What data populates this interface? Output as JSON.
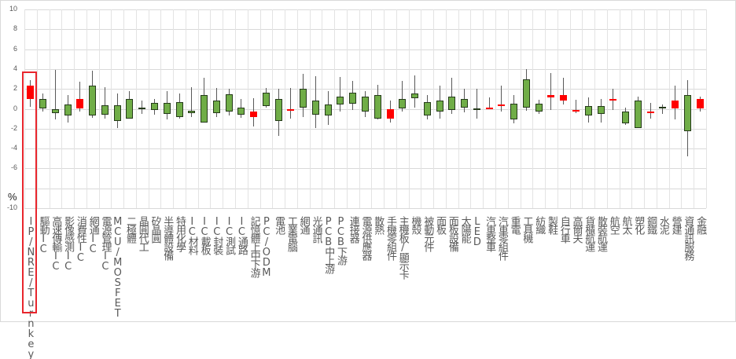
{
  "chart_data": {
    "type": "candlestick",
    "title": "",
    "xlabel": "",
    "ylabel": "%",
    "ylim": [
      -10,
      10
    ],
    "yticks": [
      10,
      8,
      6,
      4,
      2,
      0,
      -2,
      -4,
      -6,
      -8,
      -10
    ],
    "grid": true,
    "legend": null,
    "highlighted_category": "IP/NRE/Turnkey",
    "colors": {
      "up": "#ff0000",
      "down": "#70ad47",
      "highlight_box": "#e8262d"
    },
    "categories": [
      "IP/NRE/Turnkey",
      "驅動IC",
      "高速傳輸IC",
      "影像感測IC",
      "消費性IC",
      "網通IC",
      "電源管理IC",
      "MCU/MOSFET",
      "二極體",
      "晶圓代工",
      "矽晶圓",
      "半導體設備",
      "特用化學",
      "IC材料",
      "IC載板",
      "IC封裝",
      "IC測試",
      "IC通路",
      "記憶體上中下游",
      "PC/ODM",
      "電池",
      "工業電腦",
      "網通",
      "光通訊",
      "PCB中上游",
      "PCB下游",
      "連接器",
      "電源供應器",
      "散熱",
      "手機零組件",
      "主機板/顯示卡",
      "機殼",
      "被動元件",
      "面板",
      "面板設備",
      "太陽能",
      "LED",
      "汽車整車",
      "汽車零組件",
      "重電",
      "工具機",
      "紡織",
      "製鞋",
      "自行車",
      "高爾夫",
      "貨櫃航運",
      "散裝航運",
      "航空",
      "航太",
      "塑化",
      "鋼鐵",
      "水泥",
      "營建",
      "資通訊服務",
      "金融"
    ],
    "series": [
      {
        "name": "open",
        "values": [
          0.95,
          0.95,
          0,
          0.45,
          0,
          2.3,
          0.35,
          0.35,
          1.0,
          0.15,
          0.6,
          0.6,
          0.7,
          -0.2,
          1.4,
          0.85,
          1.5,
          0.1,
          -0.8,
          1.6,
          1.0,
          -0.05,
          2.0,
          0.8,
          0.4,
          1.2,
          1.65,
          1.2,
          1.4,
          -0.95,
          0.95,
          1.55,
          0.7,
          0.8,
          1.2,
          0.95,
          0.05,
          0.1,
          0.45,
          0.55,
          3.0,
          0.5,
          1.15,
          0.85,
          -0.2,
          0.25,
          0.3,
          0.95,
          -0.25,
          0.8,
          -0.4,
          0.2,
          0.05,
          1.35,
          0
        ]
      },
      {
        "name": "high",
        "values": [
          2.85,
          1.55,
          3.95,
          1.35,
          2.75,
          3.85,
          2.2,
          1.55,
          1.8,
          0.85,
          0.95,
          1.75,
          1.55,
          2.2,
          3.1,
          2.1,
          2.0,
          0.95,
          1.1,
          2.1,
          2.0,
          2.1,
          3.55,
          3.3,
          1.75,
          3.2,
          2.8,
          1.75,
          2.45,
          0.85,
          2.8,
          3.35,
          1.35,
          2.3,
          3.15,
          2.05,
          2.05,
          1.15,
          2.35,
          1.4,
          4.0,
          0.9,
          3.6,
          3.1,
          0.9,
          1.15,
          0.95,
          2.0,
          0.1,
          1.25,
          0.6,
          0.4,
          2.35,
          2.9,
          1.25
        ]
      },
      {
        "name": "low",
        "values": [
          0.2,
          -0.3,
          -1.1,
          -1.4,
          -0.3,
          -0.9,
          -1.0,
          -1.9,
          -1.0,
          -0.5,
          -0.6,
          -1.1,
          -1.0,
          -0.8,
          -1.4,
          -0.8,
          -0.7,
          -0.9,
          -1.8,
          0.1,
          -2.7,
          -1.0,
          -0.8,
          -1.9,
          -1.6,
          -0.3,
          -0.15,
          -0.8,
          -1.1,
          -1.35,
          -0.3,
          0.15,
          -1.1,
          -0.95,
          -0.55,
          -0.35,
          -0.95,
          0,
          -0.25,
          -1.5,
          -0.2,
          -0.55,
          -0.1,
          0.45,
          -0.4,
          -1.35,
          -1.4,
          -0.1,
          -1.6,
          -1.9,
          -1.0,
          -0.5,
          -1.1,
          -4.75,
          -0.3
        ]
      },
      {
        "name": "close",
        "values": [
          2.3,
          0.05,
          -0.4,
          -0.65,
          0.95,
          -0.7,
          -0.6,
          -1.2,
          -0.95,
          0.05,
          -0.1,
          -0.55,
          -0.8,
          -0.4,
          -1.35,
          -0.4,
          -0.3,
          -0.6,
          -0.3,
          0.3,
          -1.2,
          -0.05,
          0.1,
          -0.6,
          -0.7,
          0.4,
          0.5,
          -0.3,
          -0.95,
          0,
          0.05,
          1.1,
          -0.65,
          -0.25,
          -0.1,
          0.15,
          -0.1,
          0.1,
          0.45,
          -1.05,
          0.15,
          -0.25,
          1.35,
          1.35,
          -0.1,
          -0.7,
          -0.5,
          0.95,
          -1.5,
          -1.9,
          -0.25,
          0.05,
          0.8,
          -2.25,
          1.0
        ]
      }
    ]
  }
}
